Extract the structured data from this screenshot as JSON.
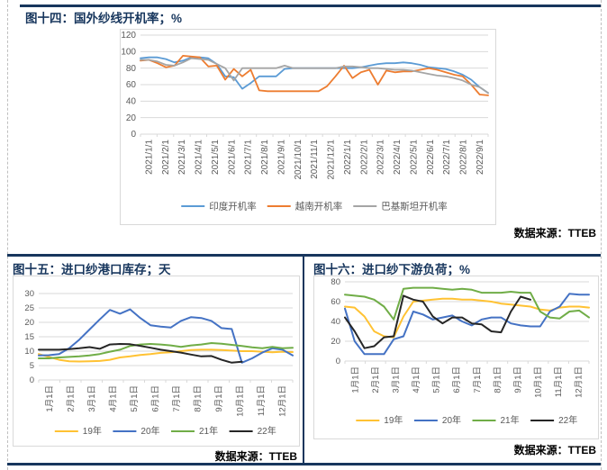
{
  "charts": [
    {
      "title": "图十四：国外纱线开机率；%",
      "source": "数据来源：TTEB",
      "chart_data": {
        "type": "line",
        "title": "国外纱线开机率",
        "ylabel": "%",
        "ylim": [
          0,
          120
        ],
        "ytick_step": 20,
        "grid": true,
        "legend_position": "bottom",
        "x_labels": [
          "2021/1/1",
          "2021/2/1",
          "2021/3/1",
          "2021/4/1",
          "2021/5/1",
          "2021/6/1",
          "2021/7/1",
          "2021/8/1",
          "2021/9/1",
          "2021/10/1",
          "2021/11/1",
          "2021/12/1",
          "2022/1/1",
          "2022/2/1",
          "2022/3/1",
          "2022/4/1",
          "2022/5/1",
          "2022/6/1",
          "2022/7/1",
          "2022/8/1",
          "2022/9/1"
        ],
        "series": [
          {
            "name": "印度开机率",
            "color": "#5B9BD5",
            "values": [
              92,
              93,
              93,
              91,
              87,
              89,
              93,
              93,
              92,
              85,
              70,
              69,
              55,
              62,
              70,
              70,
              70,
              79,
              80,
              80,
              80,
              80,
              80,
              80,
              80,
              80,
              81,
              83,
              85,
              86,
              86,
              87,
              86,
              84,
              81,
              80,
              79,
              76,
              72,
              66,
              57,
              50
            ]
          },
          {
            "name": "越南开机率",
            "color": "#ED7D31",
            "values": [
              89,
              90,
              86,
              81,
              83,
              95,
              94,
              93,
              82,
              83,
              66,
              79,
              70,
              78,
              53,
              52,
              52,
              52,
              52,
              52,
              52,
              52,
              58,
              70,
              83,
              68,
              75,
              78,
              60,
              77,
              75,
              76,
              76,
              78,
              80,
              78,
              75,
              72,
              70,
              60,
              48,
              47
            ]
          },
          {
            "name": "巴基斯坦开机率",
            "color": "#A5A5A5",
            "values": [
              90,
              90,
              88,
              84,
              83,
              87,
              92,
              91,
              90,
              85,
              80,
              65,
              80,
              80,
              80,
              80,
              80,
              83,
              80,
              80,
              80,
              80,
              80,
              80,
              82,
              82,
              81,
              80,
              80,
              79,
              78,
              78,
              77,
              75,
              73,
              71,
              70,
              68,
              65,
              60,
              57,
              50
            ]
          }
        ]
      }
    },
    {
      "title": "图十五：进口纱港口库存；天",
      "source": "数据来源：TTEB",
      "chart_data": {
        "type": "line",
        "title": "进口纱港口库存",
        "ylabel": "天",
        "ylim": [
          0,
          30
        ],
        "ytick_step": 5,
        "grid": true,
        "legend_position": "bottom",
        "x_labels": [
          "1月1日",
          "2月1日",
          "3月1日",
          "4月1日",
          "5月1日",
          "6月1日",
          "7月1日",
          "8月1日",
          "9月1日",
          "10月1日",
          "11月1日",
          "12月1日"
        ],
        "series": [
          {
            "name": "19年",
            "color": "#FFC233",
            "values": [
              9,
              8,
              7,
              6.5,
              6.4,
              6.5,
              6.6,
              7,
              7.8,
              8.2,
              8.7,
              9,
              9.4,
              9.6,
              10,
              10.4,
              10.5,
              10.5,
              10.4,
              10.2,
              10,
              10,
              9.8,
              9.6,
              9.8,
              9.7
            ]
          },
          {
            "name": "20年",
            "color": "#4472C4",
            "values": [
              8.5,
              8.6,
              9,
              11,
              14,
              17.5,
              21,
              24.3,
              23,
              24.5,
              21.5,
              19,
              18.5,
              18.2,
              20.5,
              21.8,
              21.5,
              20.5,
              18,
              17.7,
              6,
              7.5,
              9.5,
              11,
              10.5,
              8.5
            ]
          },
          {
            "name": "21年",
            "color": "#70AD47",
            "values": [
              7.5,
              7.5,
              7.8,
              8,
              8.2,
              8.5,
              9,
              9.8,
              10.5,
              11.8,
              12.3,
              12.5,
              12.3,
              12,
              11.5,
              12,
              12.3,
              12.8,
              12.6,
              12.2,
              11.8,
              11.3,
              11,
              11.5,
              11,
              11.2
            ]
          },
          {
            "name": "22年",
            "color": "#262626",
            "values": [
              10.5,
              10.5,
              10.5,
              10.7,
              11,
              11.4,
              10.8,
              12.3,
              12.5,
              12.4,
              11.8,
              11.2,
              10.5,
              10,
              9.5,
              8.8,
              8.2,
              8.3,
              7,
              6,
              6.3
            ]
          }
        ]
      }
    },
    {
      "title": "图十六：进口纱下游负荷；%",
      "source": "数据来源：TTEB",
      "chart_data": {
        "type": "line",
        "title": "进口纱下游负荷",
        "ylabel": "%",
        "ylim": [
          0,
          80
        ],
        "ytick_step": 20,
        "grid": true,
        "legend_position": "bottom",
        "x_labels": [
          "1月1日",
          "2月1日",
          "3月1日",
          "4月1日",
          "5月1日",
          "6月1日",
          "7月1日",
          "8月1日",
          "9月1日",
          "10月1日",
          "11月1日",
          "12月1日"
        ],
        "series": [
          {
            "name": "19年",
            "color": "#FFC233",
            "values": [
              55,
              54,
              45,
              30,
              25,
              24,
              45,
              60,
              61,
              62,
              63,
              63,
              62,
              62,
              61,
              60,
              58,
              57,
              56,
              55,
              52,
              51,
              54,
              55,
              55,
              54
            ]
          },
          {
            "name": "20年",
            "color": "#4472C4",
            "values": [
              53,
              20,
              7,
              7,
              7,
              22,
              25,
              50,
              47,
              42,
              44,
              46,
              40,
              36,
              42,
              44,
              44,
              38,
              36,
              35,
              35,
              50,
              55,
              68,
              67,
              67
            ]
          },
          {
            "name": "21年",
            "color": "#70AD47",
            "values": [
              67,
              66,
              65,
              62,
              55,
              42,
              73,
              74,
              74,
              74,
              73,
              72,
              73,
              72,
              69,
              69,
              69,
              70,
              69,
              69,
              50,
              44,
              43,
              50,
              51,
              44
            ]
          },
          {
            "name": "22年",
            "color": "#262626",
            "values": [
              44,
              30,
              13,
              15,
              24,
              25,
              66,
              62,
              60,
              45,
              38,
              44,
              44,
              38,
              37,
              30,
              29,
              50,
              65,
              62
            ]
          }
        ]
      }
    }
  ]
}
